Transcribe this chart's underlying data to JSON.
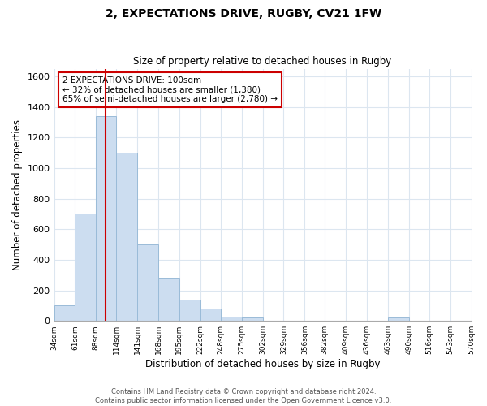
{
  "title": "2, EXPECTATIONS DRIVE, RUGBY, CV21 1FW",
  "subtitle": "Size of property relative to detached houses in Rugby",
  "xlabel": "Distribution of detached houses by size in Rugby",
  "ylabel": "Number of detached properties",
  "bar_color": "#ccddf0",
  "bar_edge_color": "#9abbd8",
  "grid_color": "#dce6f0",
  "annotation_box_color": "#ffffff",
  "annotation_box_edge": "#cc0000",
  "vline_color": "#cc0000",
  "vline_x": 100,
  "property_label": "2 EXPECTATIONS DRIVE: 100sqm",
  "smaller_pct": 32,
  "smaller_count": 1380,
  "larger_pct": 65,
  "larger_count": 2780,
  "footer_line1": "Contains HM Land Registry data © Crown copyright and database right 2024.",
  "footer_line2": "Contains public sector information licensed under the Open Government Licence v3.0.",
  "bin_edges": [
    34,
    61,
    88,
    114,
    141,
    168,
    195,
    222,
    248,
    275,
    302,
    329,
    356,
    382,
    409,
    436,
    463,
    490,
    516,
    543,
    570
  ],
  "bin_labels": [
    "34sqm",
    "61sqm",
    "88sqm",
    "114sqm",
    "141sqm",
    "168sqm",
    "195sqm",
    "222sqm",
    "248sqm",
    "275sqm",
    "302sqm",
    "329sqm",
    "356sqm",
    "382sqm",
    "409sqm",
    "436sqm",
    "463sqm",
    "490sqm",
    "516sqm",
    "543sqm",
    "570sqm"
  ],
  "bar_heights": [
    100,
    700,
    1340,
    1100,
    500,
    285,
    140,
    80,
    30,
    20,
    0,
    0,
    0,
    0,
    0,
    0,
    20,
    0,
    0,
    0
  ],
  "ylim": [
    0,
    1650
  ],
  "yticks": [
    0,
    200,
    400,
    600,
    800,
    1000,
    1200,
    1400,
    1600
  ],
  "background_color": "#ffffff"
}
